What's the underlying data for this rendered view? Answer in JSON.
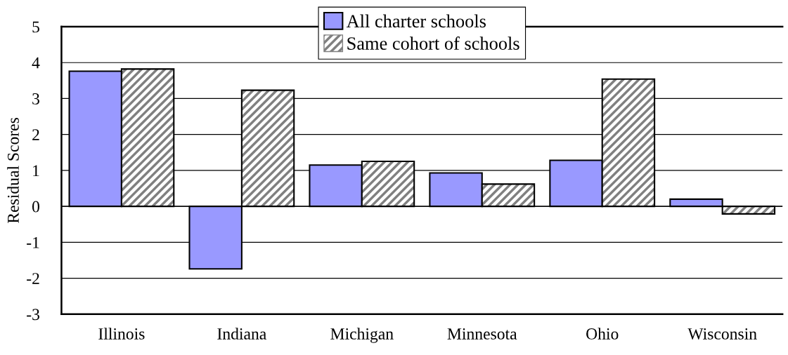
{
  "chart_data": {
    "type": "bar",
    "ylabel": "Residual Scores",
    "categories": [
      "Illinois",
      "Indiana",
      "Michigan",
      "Minnesota",
      "Ohio",
      "Wisconsin"
    ],
    "series": [
      {
        "name": "All charter schools",
        "color": "#9999ff",
        "values": [
          3.76,
          -1.74,
          1.15,
          0.93,
          1.28,
          0.2
        ]
      },
      {
        "name": "Same cohort of schools",
        "color": "#808080",
        "values": [
          3.82,
          3.23,
          1.25,
          0.62,
          3.54,
          -0.21
        ]
      }
    ],
    "ylim": [
      -3,
      5
    ],
    "yticks": [
      -3,
      -2,
      -1,
      0,
      1,
      2,
      3,
      4,
      5
    ],
    "grid": "y",
    "legend": "top"
  }
}
